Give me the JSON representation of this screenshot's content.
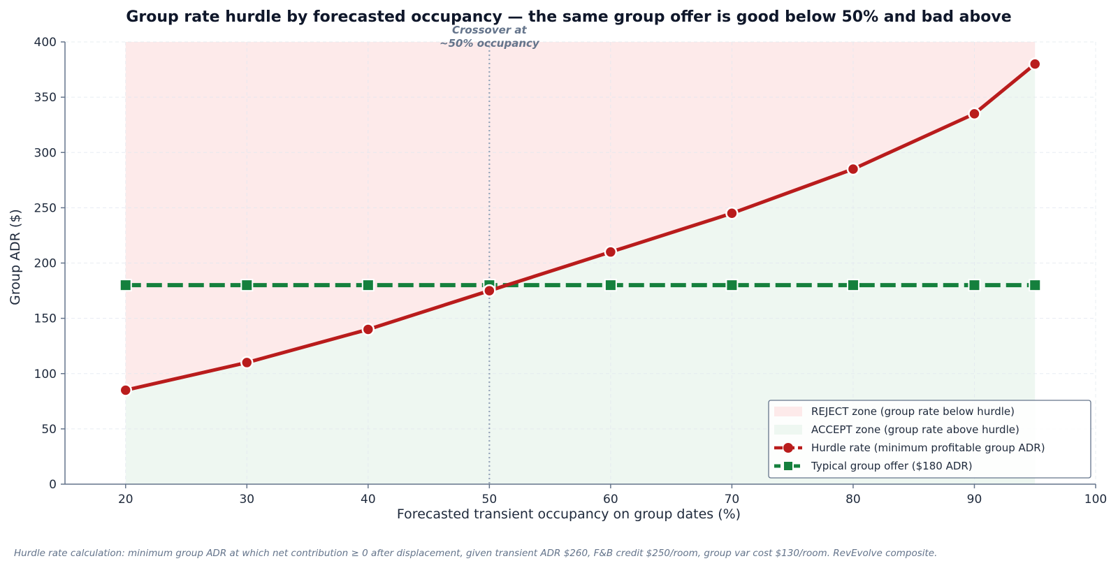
{
  "chart_data": {
    "type": "line",
    "title": "Group rate hurdle by forecasted occupancy — the same group offer is good below 50% and bad above",
    "xlabel": "Forecasted transient occupancy on group dates (%)",
    "ylabel": "Group ADR ($)",
    "xlim": [
      15,
      100
    ],
    "ylim": [
      0,
      400
    ],
    "xticks": [
      20,
      30,
      40,
      50,
      60,
      70,
      80,
      90,
      100
    ],
    "yticks": [
      0,
      50,
      100,
      150,
      200,
      250,
      300,
      350,
      400
    ],
    "grid": true,
    "legend_position": "bottom-right",
    "series": [
      {
        "name": "Hurdle rate (minimum profitable group ADR)",
        "color": "#b91c1c",
        "marker": "circle",
        "line_style": "solid",
        "x": [
          20,
          30,
          40,
          50,
          60,
          70,
          80,
          90,
          95
        ],
        "y": [
          85,
          110,
          140,
          175,
          210,
          245,
          285,
          335,
          380
        ]
      },
      {
        "name": "Typical group offer ($180 ADR)",
        "color": "#15803d",
        "marker": "square",
        "line_style": "dashed",
        "x": [
          20,
          30,
          40,
          50,
          60,
          70,
          80,
          90,
          95
        ],
        "y": [
          180,
          180,
          180,
          180,
          180,
          180,
          180,
          180,
          180
        ]
      }
    ],
    "zones": [
      {
        "name": "REJECT zone (group rate below hurdle)",
        "color": "#fdeaea",
        "x_range": [
          20,
          95
        ],
        "bounded": "above hurdle"
      },
      {
        "name": "ACCEPT zone (group rate above hurdle)",
        "color": "#eef7f1",
        "x_range": [
          20,
          95
        ],
        "bounded": "below hurdle"
      }
    ],
    "annotations": [
      {
        "text_line1": "Crossover at",
        "text_line2": "~50% occupancy",
        "x": 50
      }
    ],
    "footnote": "Hurdle rate calculation: minimum group ADR at which net contribution ≥ 0 after displacement, given transient ADR $260, F&B credit $250/room, group var cost $130/room. RevEvolve composite."
  }
}
